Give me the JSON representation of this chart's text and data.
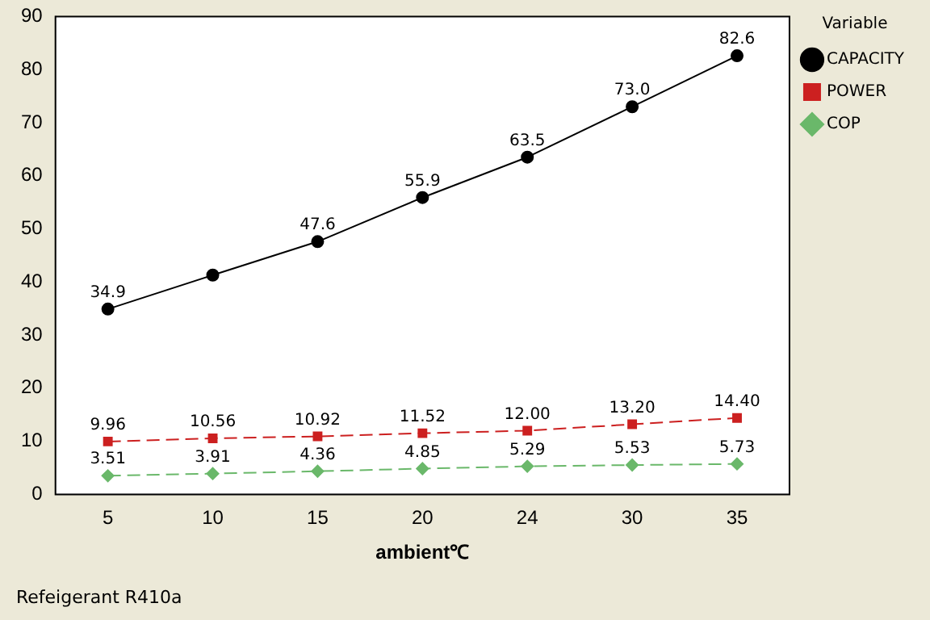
{
  "chart_data": {
    "type": "line",
    "xlabel": "ambient℃",
    "legend_title": "Variable",
    "categories": [
      "5",
      "10",
      "15",
      "20",
      "24",
      "30",
      "35"
    ],
    "series": [
      {
        "name": "CAPACITY",
        "color": "#000000",
        "marker": "circle",
        "line_style": "solid",
        "values": [
          34.9,
          41.3,
          47.6,
          55.9,
          63.5,
          73.0,
          82.6
        ],
        "value_labels": [
          "34.9",
          null,
          "47.6",
          "55.9",
          "63.5",
          "73.0",
          "82.6"
        ]
      },
      {
        "name": "POWER",
        "color": "#cc2020",
        "marker": "square",
        "line_style": "dashed",
        "values": [
          9.96,
          10.56,
          10.92,
          11.52,
          12.0,
          13.2,
          14.4
        ],
        "value_labels": [
          "9.96",
          "10.56",
          "10.92",
          "11.52",
          "12.00",
          "13.20",
          "14.40"
        ]
      },
      {
        "name": "COP",
        "color": "#6ab86a",
        "marker": "diamond",
        "line_style": "dashed",
        "values": [
          3.51,
          3.91,
          4.36,
          4.85,
          5.29,
          5.53,
          5.73
        ],
        "value_labels": [
          "3.51",
          "3.91",
          "4.36",
          "4.85",
          "5.29",
          "5.53",
          "5.73"
        ]
      }
    ],
    "ylim": [
      0,
      90
    ],
    "yticks": [
      0,
      10,
      20,
      30,
      40,
      50,
      60,
      70,
      80,
      90
    ],
    "grid": false,
    "legend": "right",
    "annotations": [
      "Refeigerant R410a"
    ]
  }
}
